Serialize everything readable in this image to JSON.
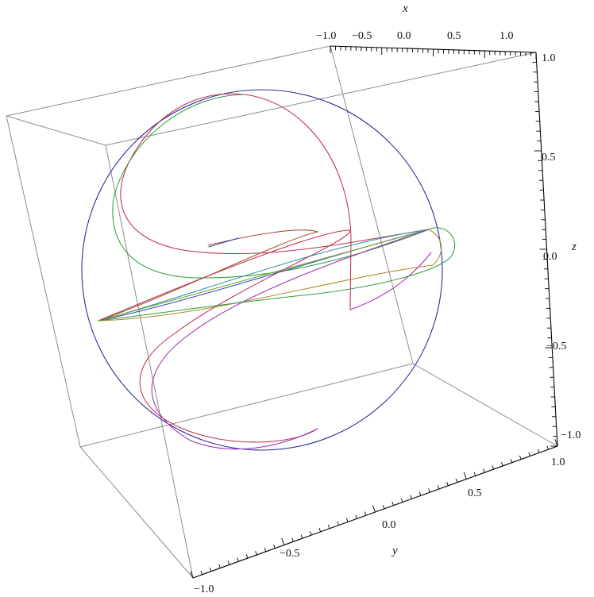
{
  "chart_data": {
    "type": "line",
    "projection": "3d",
    "title": "",
    "axes": {
      "x": {
        "label": "x",
        "range": [
          -1,
          1
        ],
        "ticks": [
          "−1.0",
          "−0.5",
          "0.0",
          "0.5",
          "1.0"
        ]
      },
      "y": {
        "label": "y",
        "range": [
          -1,
          1
        ],
        "ticks": [
          "−1.0",
          "−0.5",
          "0.0",
          "0.5",
          "1.0"
        ]
      },
      "z": {
        "label": "z",
        "range": [
          -1,
          1
        ],
        "ticks": [
          "−1.0",
          "−0.5",
          "0.0",
          "0.5",
          "1.0"
        ]
      }
    },
    "box": true,
    "grid": false,
    "legend": "none",
    "unit_sphere_outline_color": "#2b2f9e",
    "series_colors": [
      "#c0304a",
      "#9b2fb5",
      "#2f9e3a",
      "#2b4fc0",
      "#2a8fae",
      "#b08a2a",
      "#7aa52a",
      "#a0522d"
    ],
    "series_count": 8
  }
}
